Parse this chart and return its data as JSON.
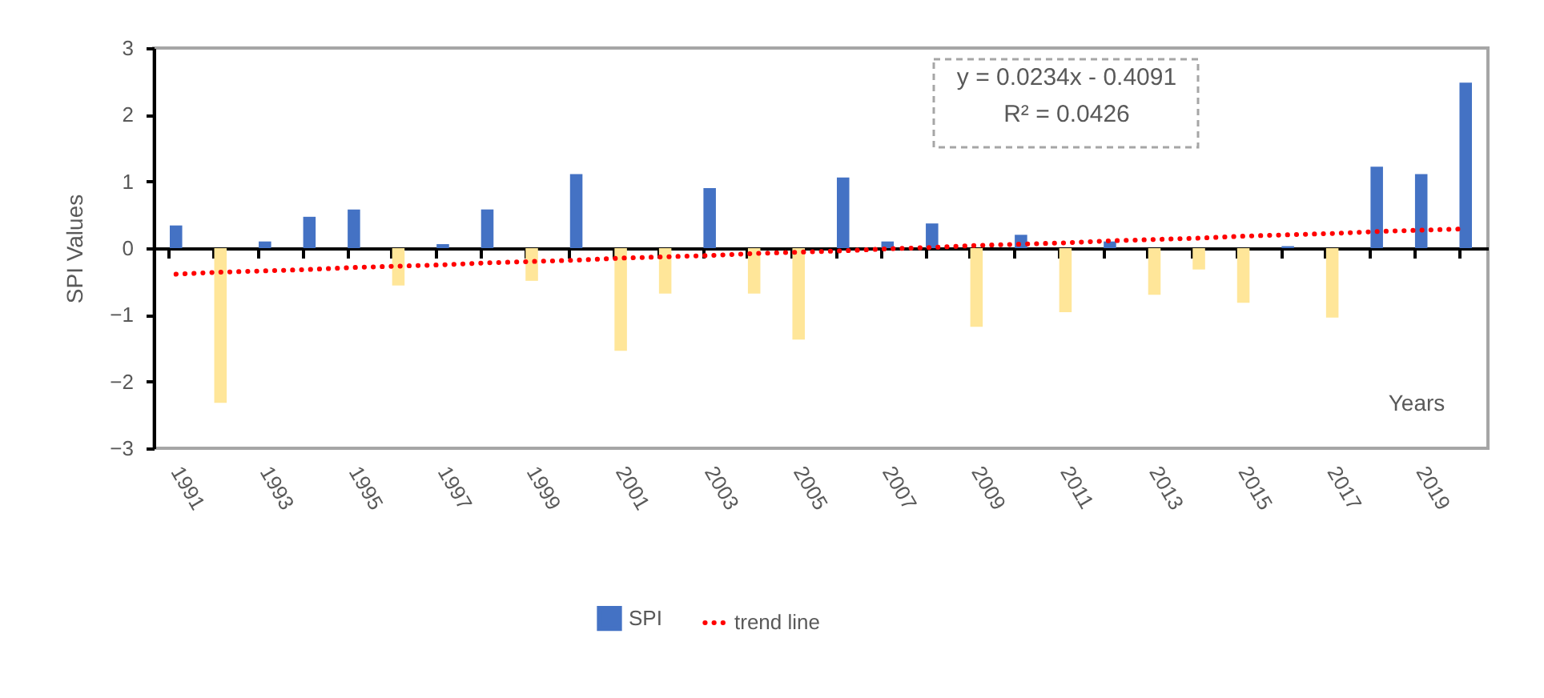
{
  "chart_data": {
    "type": "bar",
    "xlabel": "Years",
    "ylabel": "SPI Values",
    "categories": [
      "1991",
      null,
      "1993",
      null,
      "1995",
      null,
      "1997",
      null,
      "1999",
      null,
      "2001",
      null,
      "2003",
      null,
      "2005",
      null,
      "2007",
      null,
      "2009",
      null,
      "2011",
      null,
      "2013",
      null,
      "2015",
      null,
      "2017",
      null,
      "2019",
      null
    ],
    "ylim": [
      -3,
      3
    ],
    "yticks": [
      -3,
      -2,
      -1,
      0,
      1,
      2,
      3
    ],
    "legend": "bottom",
    "annotations": [
      "y = 0.0234x - 0.4091",
      "R² = 0.0426"
    ],
    "series": [
      {
        "name": "SPI",
        "color": "#4472c4",
        "colors": [
          "#4472c4",
          "#ffe699",
          "#4472c4",
          "#4472c4",
          "#4472c4",
          "#ffe699",
          "#4472c4",
          "#4472c4",
          "#ffe699",
          "#4472c4",
          "#ffe699",
          "#ffe699",
          "#4472c4",
          "#ffe699",
          "#ffe699",
          "#4472c4",
          "#4472c4",
          "#4472c4",
          "#ffe699",
          "#4472c4",
          "#ffe699",
          "#4472c4",
          "#ffe699",
          "#ffe699",
          "#ffe699",
          "#4472c4",
          "#ffe699",
          "#4472c4",
          "#4472c4",
          "#4472c4"
        ],
        "values": [
          0.34,
          -2.32,
          0.1,
          0.47,
          0.58,
          -0.56,
          0.06,
          0.58,
          -0.49,
          1.11,
          -1.54,
          -0.68,
          0.9,
          -0.68,
          -1.37,
          1.06,
          0.1,
          0.37,
          -1.18,
          0.2,
          -0.96,
          0.1,
          -0.7,
          -0.32,
          -0.82,
          0.03,
          -1.04,
          1.22,
          1.11,
          2.48
        ]
      },
      {
        "name": "trend line",
        "type": "line",
        "color": "#ff0000",
        "line_style": "dotted",
        "marker": "none",
        "values": [
          -0.39,
          -0.36,
          -0.34,
          -0.32,
          -0.29,
          -0.27,
          -0.25,
          -0.22,
          -0.2,
          -0.18,
          -0.15,
          -0.13,
          -0.11,
          -0.08,
          -0.06,
          -0.04,
          -0.01,
          0.01,
          0.04,
          0.06,
          0.08,
          0.11,
          0.13,
          0.15,
          0.18,
          0.2,
          0.22,
          0.25,
          0.27,
          0.29
        ]
      }
    ]
  }
}
